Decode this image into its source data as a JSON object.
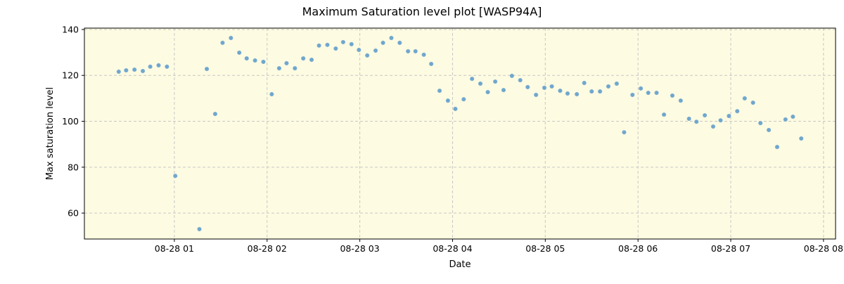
{
  "chart_data": {
    "type": "scatter",
    "title": "Maximum Saturation level plot [WASP94A]",
    "xlabel": "Date",
    "ylabel": "Max saturation level",
    "x_units": "hours since 08-28 00:00",
    "xlim": [
      0.03,
      8.13
    ],
    "ylim": [
      48.7,
      140.6
    ],
    "grid": true,
    "background_color": "#fdfbe1",
    "point_color": "#6fa6cc",
    "xticks": [
      {
        "value": 1,
        "label": "08-28 01"
      },
      {
        "value": 2,
        "label": "08-28 02"
      },
      {
        "value": 3,
        "label": "08-28 03"
      },
      {
        "value": 4,
        "label": "08-28 04"
      },
      {
        "value": 5,
        "label": "08-28 05"
      },
      {
        "value": 6,
        "label": "08-28 06"
      },
      {
        "value": 7,
        "label": "08-28 07"
      },
      {
        "value": 8,
        "label": "08-28 08"
      }
    ],
    "yticks": [
      {
        "value": 60,
        "label": "60"
      },
      {
        "value": 80,
        "label": "80"
      },
      {
        "value": 100,
        "label": "100"
      },
      {
        "value": 120,
        "label": "120"
      },
      {
        "value": 140,
        "label": "140"
      }
    ],
    "x": [
      0.4,
      0.48,
      0.57,
      0.66,
      0.74,
      0.83,
      0.92,
      1.01,
      1.27,
      1.35,
      1.44,
      1.52,
      1.61,
      1.7,
      1.78,
      1.87,
      1.96,
      2.05,
      2.13,
      2.21,
      2.3,
      2.39,
      2.48,
      2.56,
      2.65,
      2.74,
      2.82,
      2.91,
      2.99,
      3.08,
      3.17,
      3.25,
      3.34,
      3.43,
      3.52,
      3.6,
      3.69,
      3.77,
      3.86,
      3.95,
      4.03,
      4.12,
      4.21,
      4.3,
      4.38,
      4.46,
      4.55,
      4.64,
      4.73,
      4.81,
      4.9,
      4.99,
      5.07,
      5.16,
      5.24,
      5.34,
      5.42,
      5.5,
      5.59,
      5.68,
      5.77,
      5.85,
      5.94,
      6.03,
      6.11,
      6.2,
      6.28,
      6.37,
      6.46,
      6.55,
      6.63,
      6.72,
      6.81,
      6.89,
      6.98,
      7.07,
      7.15,
      7.24,
      7.32,
      7.41,
      7.5,
      7.59,
      7.67,
      7.76
    ],
    "y": [
      121.6,
      122.2,
      122.5,
      121.9,
      123.8,
      124.4,
      123.8,
      76.2,
      53.0,
      122.8,
      103.2,
      134.2,
      136.3,
      129.9,
      127.4,
      126.5,
      125.9,
      111.8,
      123.1,
      125.3,
      123.1,
      127.4,
      126.8,
      133.0,
      133.3,
      131.7,
      134.5,
      133.6,
      131.1,
      128.7,
      130.8,
      134.2,
      136.3,
      134.2,
      130.5,
      130.5,
      129.0,
      125.0,
      113.3,
      109.0,
      105.4,
      109.6,
      118.5,
      116.4,
      112.7,
      117.3,
      113.6,
      119.8,
      117.9,
      114.9,
      111.5,
      114.6,
      115.2,
      113.3,
      112.1,
      111.8,
      116.7,
      113.0,
      113.0,
      115.2,
      116.4,
      95.2,
      111.5,
      114.3,
      112.4,
      112.4,
      102.9,
      111.2,
      109.0,
      101.1,
      99.8,
      102.6,
      97.7,
      100.4,
      102.3,
      104.4,
      110.0,
      108.1,
      99.2,
      96.2,
      88.8,
      100.8,
      102.0,
      92.5
    ]
  }
}
